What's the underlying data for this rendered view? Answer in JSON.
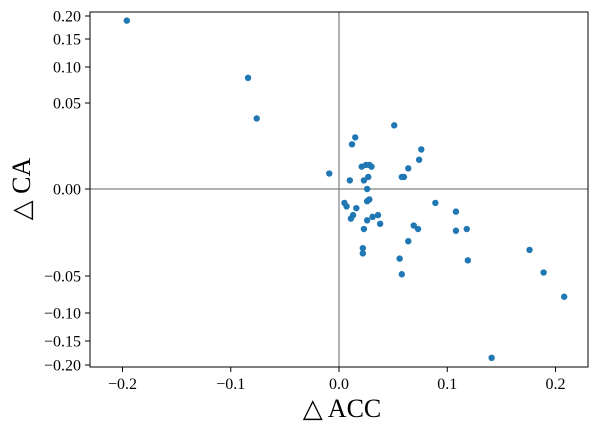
{
  "chart_data": {
    "type": "scatter",
    "title": "",
    "xlabel": "△ ACC",
    "ylabel": "△ CA",
    "xlim": [
      -0.23,
      0.23
    ],
    "ylim": [
      -0.2,
      0.2
    ],
    "y_scale": "symlog-like (compressed beyond ±0.05)",
    "grid": false,
    "reference_lines": {
      "x": 0,
      "y": 0,
      "color": "#808080"
    },
    "marker_color": "#1f77b4",
    "x_ticks": [
      {
        "value": -0.2,
        "label": "−0.2"
      },
      {
        "value": -0.1,
        "label": "−0.1"
      },
      {
        "value": 0.0,
        "label": "0.0"
      },
      {
        "value": 0.1,
        "label": "0.1"
      },
      {
        "value": 0.2,
        "label": "0.2"
      }
    ],
    "y_ticks": [
      {
        "value": 0.2,
        "label": "0.20"
      },
      {
        "value": 0.15,
        "label": "0.15"
      },
      {
        "value": 0.1,
        "label": "0.10"
      },
      {
        "value": 0.05,
        "label": "0.05"
      },
      {
        "value": 0.0,
        "label": "0.00"
      },
      {
        "value": -0.05,
        "label": "−0.05"
      },
      {
        "value": -0.1,
        "label": "−0.10"
      },
      {
        "value": -0.15,
        "label": "−0.15"
      },
      {
        "value": -0.2,
        "label": "−0.20"
      }
    ],
    "points": [
      [
        -0.196,
        0.19
      ],
      [
        -0.084,
        0.085
      ],
      [
        -0.076,
        0.041
      ],
      [
        -0.009,
        0.009
      ],
      [
        0.012,
        0.026
      ],
      [
        0.015,
        0.03
      ],
      [
        0.051,
        0.037
      ],
      [
        0.076,
        0.023
      ],
      [
        0.074,
        0.017
      ],
      [
        0.064,
        0.012
      ],
      [
        0.06,
        0.007
      ],
      [
        0.058,
        0.007
      ],
      [
        0.021,
        0.013
      ],
      [
        0.025,
        0.014
      ],
      [
        0.028,
        0.014
      ],
      [
        0.03,
        0.013
      ],
      [
        0.027,
        0.007
      ],
      [
        0.023,
        0.005
      ],
      [
        0.01,
        0.005
      ],
      [
        0.026,
        0.0
      ],
      [
        0.026,
        -0.007
      ],
      [
        0.028,
        -0.006
      ],
      [
        0.005,
        -0.008
      ],
      [
        0.007,
        -0.01
      ],
      [
        0.016,
        -0.011
      ],
      [
        0.011,
        -0.017
      ],
      [
        0.013,
        -0.015
      ],
      [
        0.026,
        -0.018
      ],
      [
        0.031,
        -0.016
      ],
      [
        0.036,
        -0.015
      ],
      [
        0.038,
        -0.02
      ],
      [
        0.023,
        -0.023
      ],
      [
        0.022,
        -0.034
      ],
      [
        0.022,
        -0.037
      ],
      [
        0.069,
        -0.021
      ],
      [
        0.073,
        -0.023
      ],
      [
        0.064,
        -0.03
      ],
      [
        0.056,
        -0.04
      ],
      [
        0.058,
        -0.049
      ],
      [
        0.089,
        -0.008
      ],
      [
        0.108,
        -0.013
      ],
      [
        0.108,
        -0.024
      ],
      [
        0.118,
        -0.023
      ],
      [
        0.119,
        -0.041
      ],
      [
        0.176,
        -0.035
      ],
      [
        0.189,
        -0.048
      ],
      [
        0.208,
        -0.078
      ],
      [
        0.141,
        -0.185
      ]
    ]
  }
}
